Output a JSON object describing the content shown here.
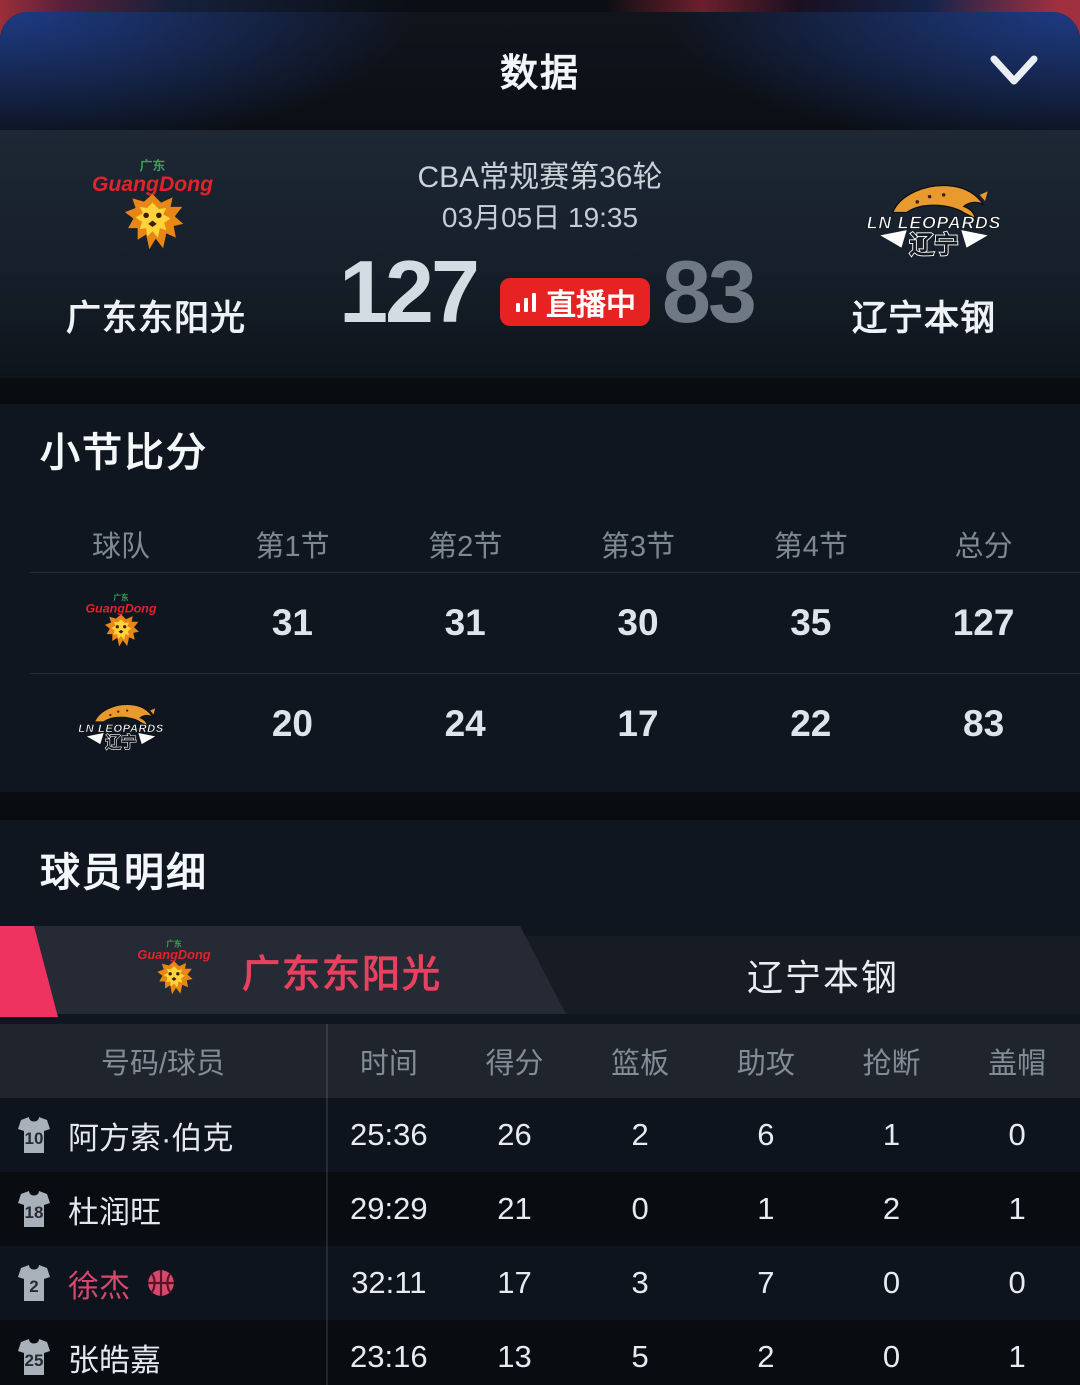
{
  "topbar": {
    "title": "数据"
  },
  "match": {
    "league": "CBA常规赛第36轮",
    "datetime": "03月05日 19:35",
    "live_label": "直播中",
    "home": {
      "name": "广东东阳光",
      "score": "127"
    },
    "away": {
      "name": "辽宁本钢",
      "score": "83"
    }
  },
  "quarters": {
    "section_title": "小节比分",
    "headers": [
      "球队",
      "第1节",
      "第2节",
      "第3节",
      "第4节",
      "总分"
    ],
    "rows": [
      {
        "team": "guangdong",
        "scores": [
          "31",
          "31",
          "30",
          "35",
          "127"
        ]
      },
      {
        "team": "liaoning",
        "scores": [
          "20",
          "24",
          "17",
          "22",
          "83"
        ]
      }
    ]
  },
  "players": {
    "section_title": "球员明细",
    "tabs": [
      {
        "label": "广东东阳光",
        "active": true
      },
      {
        "label": "辽宁本钢",
        "active": false
      }
    ],
    "headers": [
      "号码/球员",
      "时间",
      "得分",
      "篮板",
      "助攻",
      "抢断",
      "盖帽"
    ],
    "rows": [
      {
        "number": "10",
        "name": "阿方索·伯克",
        "on_court": false,
        "stats": [
          "25:36",
          "26",
          "2",
          "6",
          "1",
          "0"
        ]
      },
      {
        "number": "18",
        "name": "杜润旺",
        "on_court": false,
        "stats": [
          "29:29",
          "21",
          "0",
          "1",
          "2",
          "1"
        ]
      },
      {
        "number": "2",
        "name": "徐杰",
        "on_court": true,
        "stats": [
          "32:11",
          "17",
          "3",
          "7",
          "0",
          "0"
        ]
      },
      {
        "number": "25",
        "name": "张皓嘉",
        "on_court": false,
        "stats": [
          "23:16",
          "13",
          "5",
          "2",
          "0",
          "1"
        ]
      }
    ]
  },
  "icons": {
    "collapse": "chevron-down",
    "live": "signal-bars",
    "player_badge": "jersey",
    "on_court_marker": "basketball"
  },
  "colors": {
    "accent_pink": "#EE3360",
    "live_red": "#E62222",
    "active_tab_label": "#E8415F",
    "on_court_player": "#D8486C",
    "winning_score": "#D3DBE3",
    "losing_score": "#6E7985",
    "panel_bg": "#0B0F15",
    "section_bg": "#10161F"
  }
}
